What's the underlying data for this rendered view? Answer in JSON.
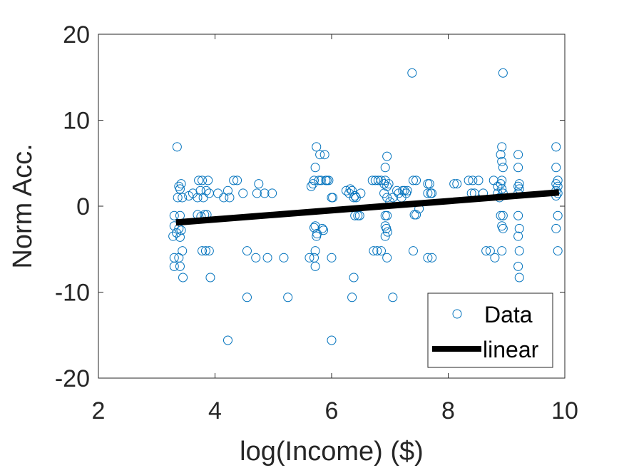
{
  "chart_data": {
    "type": "scatter",
    "title": "",
    "xlabel": "log(Income) ($)",
    "ylabel": "Norm Acc.",
    "xlim": [
      2,
      10
    ],
    "ylim": [
      -20,
      20
    ],
    "xticks": [
      2,
      4,
      6,
      8,
      10
    ],
    "yticks": [
      -20,
      -10,
      0,
      10,
      20
    ],
    "xtick_labels": [
      "2",
      "4",
      "6",
      "8",
      "10"
    ],
    "ytick_labels": [
      "-20",
      "-10",
      "0",
      "10",
      "20"
    ],
    "grid": false,
    "legend_position": "bottom-right",
    "colors": {
      "data": "#0072BD",
      "fit": "#000000",
      "axes": "#262626"
    },
    "series": [
      {
        "name": "Data",
        "kind": "markers",
        "marker": "open-circle",
        "points": [
          [
            3.35,
            6.9
          ],
          [
            3.38,
            2.3
          ],
          [
            3.42,
            2.6
          ],
          [
            3.4,
            2.0
          ],
          [
            3.36,
            1.0
          ],
          [
            3.44,
            1.0
          ],
          [
            3.3,
            -1.1
          ],
          [
            3.4,
            -1.1
          ],
          [
            3.3,
            -2.3
          ],
          [
            3.38,
            -2.6
          ],
          [
            3.42,
            -2.8
          ],
          [
            3.34,
            -3.1
          ],
          [
            3.28,
            -3.5
          ],
          [
            3.4,
            -3.6
          ],
          [
            3.44,
            -5.2
          ],
          [
            3.3,
            -6.0
          ],
          [
            3.38,
            -6.0
          ],
          [
            3.3,
            -7.0
          ],
          [
            3.4,
            -7.0
          ],
          [
            3.45,
            -8.3
          ],
          [
            3.55,
            1.2
          ],
          [
            3.62,
            1.5
          ],
          [
            3.7,
            1.0
          ],
          [
            3.72,
            3.0
          ],
          [
            3.78,
            3.0
          ],
          [
            3.75,
            1.8
          ],
          [
            3.8,
            1.0
          ],
          [
            3.85,
            1.8
          ],
          [
            3.88,
            3.0
          ],
          [
            3.9,
            1.5
          ],
          [
            3.82,
            -1.0
          ],
          [
            3.76,
            -1.2
          ],
          [
            3.7,
            -1.0
          ],
          [
            3.86,
            -1.0
          ],
          [
            3.78,
            -5.2
          ],
          [
            3.84,
            -5.2
          ],
          [
            3.9,
            -5.2
          ],
          [
            3.92,
            -8.3
          ],
          [
            4.05,
            1.5
          ],
          [
            4.15,
            1.0
          ],
          [
            4.22,
            1.8
          ],
          [
            4.25,
            1.0
          ],
          [
            4.32,
            3.0
          ],
          [
            4.38,
            3.0
          ],
          [
            4.22,
            -15.6
          ],
          [
            4.55,
            -5.2
          ],
          [
            4.55,
            -10.6
          ],
          [
            4.48,
            1.5
          ],
          [
            4.7,
            -6.0
          ],
          [
            4.72,
            1.5
          ],
          [
            4.75,
            2.6
          ],
          [
            4.85,
            1.5
          ],
          [
            4.9,
            -6.0
          ],
          [
            4.98,
            1.5
          ],
          [
            5.18,
            -6.0
          ],
          [
            5.25,
            -10.6
          ],
          [
            5.62,
            -6.0
          ],
          [
            5.65,
            2.3
          ],
          [
            5.68,
            2.6
          ],
          [
            5.7,
            3.0
          ],
          [
            5.72,
            4.5
          ],
          [
            5.74,
            6.9
          ],
          [
            5.72,
            -2.3
          ],
          [
            5.7,
            -2.5
          ],
          [
            5.74,
            -3.5
          ],
          [
            5.72,
            -5.2
          ],
          [
            5.7,
            -6.0
          ],
          [
            5.72,
            -7.0
          ],
          [
            5.75,
            -3.2
          ],
          [
            5.78,
            3.0
          ],
          [
            5.8,
            6.0
          ],
          [
            5.82,
            3.0
          ],
          [
            5.84,
            -2.6
          ],
          [
            5.86,
            -2.8
          ],
          [
            5.88,
            6.0
          ],
          [
            5.9,
            3.0
          ],
          [
            5.92,
            3.0
          ],
          [
            5.95,
            3.0
          ],
          [
            6.0,
            1.0
          ],
          [
            6.02,
            1.0
          ],
          [
            6.0,
            -6.0
          ],
          [
            6.0,
            -15.6
          ],
          [
            6.25,
            1.8
          ],
          [
            6.3,
            1.5
          ],
          [
            6.32,
            2.0
          ],
          [
            6.35,
            1.8
          ],
          [
            6.38,
            1.0
          ],
          [
            6.4,
            1.2
          ],
          [
            6.42,
            1.0
          ],
          [
            6.4,
            -1.1
          ],
          [
            6.45,
            -1.1
          ],
          [
            6.48,
            -1.1
          ],
          [
            6.5,
            1.5
          ],
          [
            6.35,
            -10.6
          ],
          [
            6.38,
            -8.3
          ],
          [
            6.7,
            3.0
          ],
          [
            6.75,
            3.0
          ],
          [
            6.8,
            3.0
          ],
          [
            6.85,
            3.0
          ],
          [
            6.9,
            2.6
          ],
          [
            6.92,
            3.0
          ],
          [
            6.95,
            2.3
          ],
          [
            6.98,
            2.6
          ],
          [
            6.9,
            1.5
          ],
          [
            6.95,
            1.0
          ],
          [
            7.0,
            0.5
          ],
          [
            6.92,
            -1.1
          ],
          [
            6.95,
            -1.1
          ],
          [
            6.92,
            -2.3
          ],
          [
            6.94,
            -2.6
          ],
          [
            6.96,
            -3.0
          ],
          [
            6.92,
            -3.5
          ],
          [
            6.95,
            -6.0
          ],
          [
            6.72,
            -5.2
          ],
          [
            6.78,
            -5.2
          ],
          [
            6.85,
            -5.2
          ],
          [
            6.92,
            4.5
          ],
          [
            6.95,
            5.8
          ],
          [
            7.05,
            -10.6
          ],
          [
            7.05,
            1.0
          ],
          [
            7.12,
            1.8
          ],
          [
            7.15,
            1.5
          ],
          [
            7.2,
            1.0
          ],
          [
            7.22,
            1.8
          ],
          [
            7.25,
            1.8
          ],
          [
            7.28,
            1.5
          ],
          [
            7.3,
            1.8
          ],
          [
            7.38,
            15.5
          ],
          [
            7.4,
            3.0
          ],
          [
            7.45,
            3.0
          ],
          [
            7.42,
            -1.0
          ],
          [
            7.45,
            -1.0
          ],
          [
            7.4,
            -5.2
          ],
          [
            7.5,
            -0.3
          ],
          [
            7.65,
            2.6
          ],
          [
            7.68,
            2.6
          ],
          [
            7.7,
            1.5
          ],
          [
            7.65,
            1.5
          ],
          [
            7.72,
            1.5
          ],
          [
            7.65,
            -6.0
          ],
          [
            7.72,
            -6.0
          ],
          [
            8.1,
            2.6
          ],
          [
            8.15,
            2.6
          ],
          [
            8.35,
            3.0
          ],
          [
            8.42,
            3.0
          ],
          [
            8.4,
            1.5
          ],
          [
            8.45,
            1.5
          ],
          [
            8.52,
            3.0
          ],
          [
            8.6,
            1.5
          ],
          [
            8.65,
            -5.2
          ],
          [
            8.72,
            -5.2
          ],
          [
            8.78,
            3.0
          ],
          [
            8.8,
            -6.0
          ],
          [
            8.85,
            2.3
          ],
          [
            8.85,
            1.5
          ],
          [
            8.88,
            1.0
          ],
          [
            8.9,
            2.6
          ],
          [
            8.92,
            3.0
          ],
          [
            8.94,
            15.5
          ],
          [
            8.92,
            6.9
          ],
          [
            8.9,
            6.0
          ],
          [
            8.92,
            5.2
          ],
          [
            8.94,
            4.5
          ],
          [
            8.92,
            2.0
          ],
          [
            8.94,
            1.5
          ],
          [
            8.9,
            -1.1
          ],
          [
            8.94,
            -1.1
          ],
          [
            8.92,
            -2.3
          ],
          [
            8.94,
            -2.6
          ],
          [
            8.92,
            -5.2
          ],
          [
            9.2,
            6.0
          ],
          [
            9.2,
            4.5
          ],
          [
            9.22,
            2.6
          ],
          [
            9.2,
            2.3
          ],
          [
            9.22,
            2.0
          ],
          [
            9.2,
            1.5
          ],
          [
            9.2,
            -1.1
          ],
          [
            9.22,
            -2.6
          ],
          [
            9.2,
            -3.5
          ],
          [
            9.22,
            -5.2
          ],
          [
            9.2,
            -7.0
          ],
          [
            9.22,
            -8.3
          ],
          [
            9.85,
            6.9
          ],
          [
            9.85,
            4.5
          ],
          [
            9.88,
            3.0
          ],
          [
            9.85,
            2.6
          ],
          [
            9.88,
            2.3
          ],
          [
            9.85,
            1.8
          ],
          [
            9.88,
            1.5
          ],
          [
            9.85,
            1.2
          ],
          [
            9.88,
            -1.1
          ],
          [
            9.85,
            -2.6
          ],
          [
            9.88,
            -5.2
          ]
        ]
      },
      {
        "name": "linear",
        "kind": "line",
        "points": [
          [
            3.33,
            -1.9
          ],
          [
            9.9,
            1.6
          ]
        ]
      }
    ]
  }
}
